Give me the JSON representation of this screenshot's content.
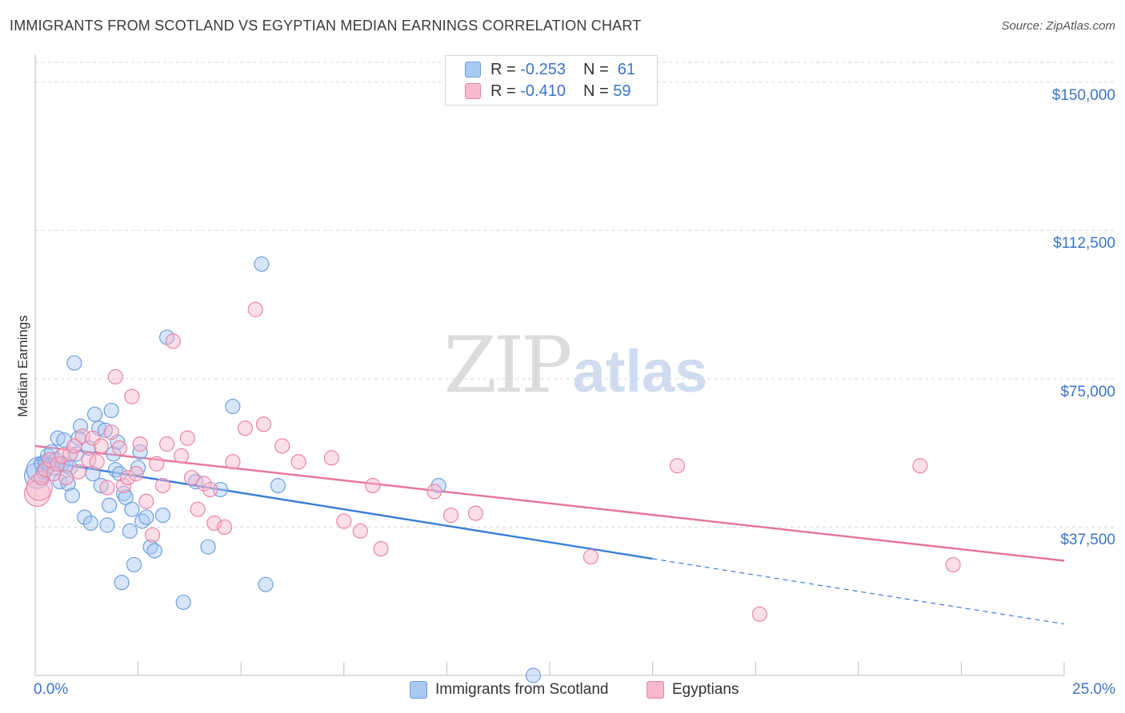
{
  "header": {
    "title": "IMMIGRANTS FROM SCOTLAND VS EGYPTIAN MEDIAN EARNINGS CORRELATION CHART",
    "source": "Source: ZipAtlas.com"
  },
  "watermark": {
    "zip": "ZIP",
    "atlas": "atlas"
  },
  "legend": {
    "rows": [
      {
        "r_label": "R =",
        "r_value": "-0.253",
        "n_label": "N =",
        "n_value": "61",
        "color": "#a9c8f2",
        "border": "#6d9fe0"
      },
      {
        "r_label": "R =",
        "r_value": "-0.410",
        "n_label": "N =",
        "n_value": "59",
        "color": "#f7b9cc",
        "border": "#eb84a6"
      }
    ]
  },
  "bottom_legend": [
    {
      "label": "Immigrants from Scotland",
      "color": "#a9c8f2",
      "border": "#6d9fe0"
    },
    {
      "label": "Egyptians",
      "color": "#f7b9cc",
      "border": "#eb84a6"
    }
  ],
  "chart_data": {
    "type": "scatter",
    "title": "IMMIGRANTS FROM SCOTLAND VS EGYPTIAN MEDIAN EARNINGS CORRELATION CHART",
    "xlabel": "",
    "ylabel": "Median Earnings",
    "xlim": [
      0,
      25
    ],
    "ylim": [
      0,
      155000
    ],
    "x_tick_labels": [
      "0.0%",
      "25.0%"
    ],
    "y_ticks": [
      37500,
      75000,
      112500,
      150000
    ],
    "y_tick_labels": [
      "$37,500",
      "$75,000",
      "$112,500",
      "$150,000"
    ],
    "grid": true,
    "legend_position": "top-center",
    "colors": {
      "scotland": "#3b7dd8",
      "egyptians": "#e8739b"
    },
    "series": [
      {
        "name": "Immigrants from Scotland",
        "color": "#3b7dd8",
        "trend": {
          "x": [
            0,
            15
          ],
          "y": [
            54500,
            29500
          ],
          "dashed_to": [
            25,
            13000
          ]
        },
        "x": [
          0.05,
          0.1,
          0.15,
          0.2,
          0.25,
          0.3,
          0.35,
          0.4,
          0.45,
          0.5,
          0.55,
          0.6,
          0.65,
          0.7,
          0.75,
          0.8,
          0.85,
          0.9,
          0.95,
          1.0,
          1.05,
          1.1,
          1.2,
          1.3,
          1.35,
          1.4,
          1.45,
          1.55,
          1.6,
          1.7,
          1.75,
          1.8,
          1.85,
          1.9,
          1.95,
          2.0,
          2.05,
          2.1,
          2.15,
          2.2,
          2.3,
          2.35,
          2.4,
          2.5,
          2.55,
          2.6,
          2.7,
          2.8,
          2.9,
          3.1,
          3.2,
          3.6,
          3.9,
          4.2,
          4.5,
          4.8,
          5.5,
          5.6,
          5.9,
          9.8,
          12.1
        ],
        "y": [
          50500,
          52000,
          53500,
          51500,
          54000,
          55500,
          53000,
          56500,
          52500,
          54500,
          60000,
          49000,
          53500,
          59500,
          53000,
          48500,
          52500,
          45500,
          79000,
          56000,
          60000,
          63000,
          40000,
          57500,
          38500,
          51000,
          66000,
          62500,
          48000,
          62000,
          38000,
          43000,
          67000,
          56000,
          52000,
          59000,
          51000,
          23500,
          46000,
          45000,
          36500,
          42000,
          28000,
          52500,
          56500,
          39000,
          40000,
          32500,
          31500,
          40500,
          85500,
          18500,
          49000,
          32500,
          47000,
          68000,
          104000,
          23000,
          48000,
          48000,
          0
        ]
      },
      {
        "name": "Egyptians",
        "color": "#e8739b",
        "trend": {
          "x": [
            0,
            25
          ],
          "y": [
            58000,
            29000
          ]
        },
        "x": [
          0.05,
          0.1,
          0.15,
          0.25,
          0.35,
          0.45,
          0.55,
          0.65,
          0.75,
          0.85,
          0.95,
          1.05,
          1.15,
          1.3,
          1.4,
          1.5,
          1.6,
          1.75,
          1.85,
          1.95,
          2.05,
          2.15,
          2.25,
          2.35,
          2.45,
          2.55,
          2.7,
          2.85,
          2.95,
          3.1,
          3.2,
          3.35,
          3.55,
          3.7,
          3.8,
          3.95,
          4.1,
          4.25,
          4.35,
          4.6,
          4.8,
          5.1,
          5.35,
          5.55,
          6.0,
          6.4,
          7.2,
          7.5,
          7.9,
          8.2,
          8.4,
          9.7,
          10.1,
          10.7,
          13.5,
          15.6,
          17.6,
          21.5,
          22.3
        ],
        "y": [
          46000,
          47500,
          50000,
          52000,
          54500,
          51000,
          53500,
          55500,
          50000,
          56000,
          58000,
          51500,
          60500,
          54500,
          60000,
          54000,
          58000,
          47500,
          61500,
          75500,
          57500,
          48000,
          50000,
          70500,
          51000,
          58500,
          44000,
          35500,
          53500,
          48000,
          58500,
          84500,
          55500,
          60000,
          50000,
          42000,
          48500,
          47000,
          38500,
          37500,
          54000,
          62500,
          92500,
          63500,
          58000,
          54000,
          55000,
          39000,
          36500,
          48000,
          32000,
          46500,
          40500,
          41000,
          30000,
          53000,
          15500,
          53000,
          28000
        ]
      }
    ]
  }
}
